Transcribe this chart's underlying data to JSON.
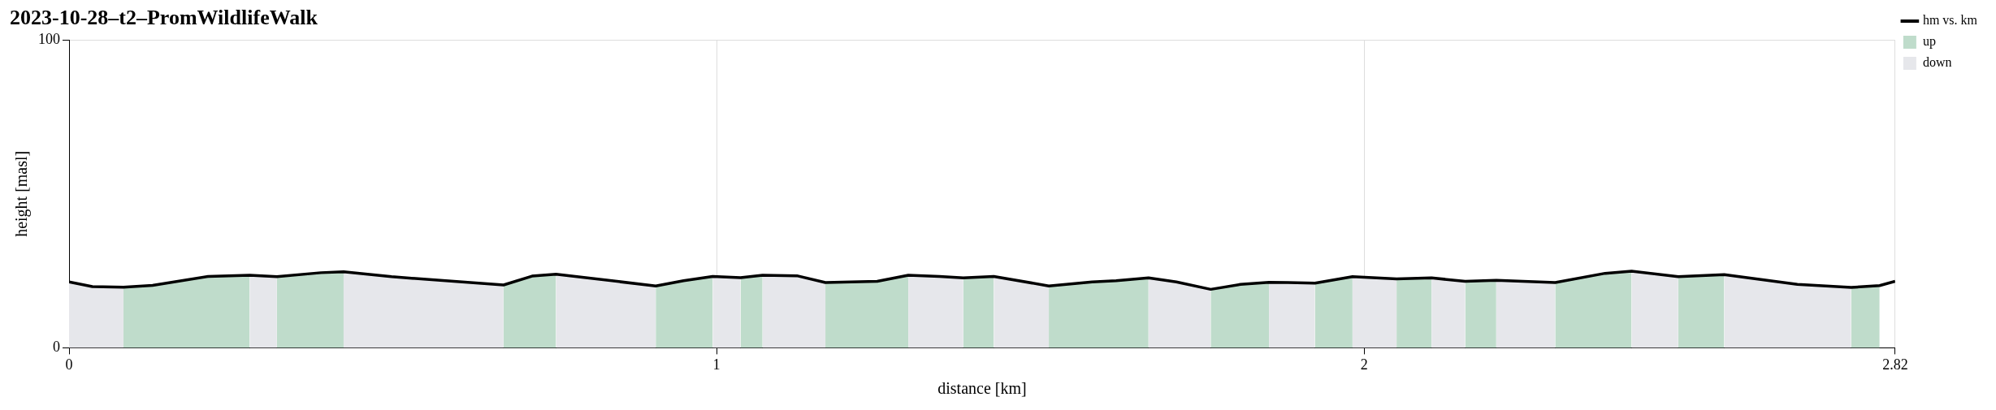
{
  "chart_data": {
    "type": "area",
    "title": "2023-10-28–t2–PromWildlifeWalk",
    "xlabel": "distance [km]",
    "ylabel": "height [masl]",
    "xlim": [
      0,
      2.82
    ],
    "xticks": [
      0,
      1,
      2,
      2.82
    ],
    "ylim": [
      0,
      100
    ],
    "yticks": [
      0,
      100
    ],
    "grid": "x",
    "legend": "top right",
    "series": [
      {
        "name": "hm vs. km",
        "type": "line",
        "color": "#000000",
        "x": [
          0,
          0.036,
          0.084,
          0.129,
          0.215,
          0.279,
          0.321,
          0.389,
          0.424,
          0.498,
          0.671,
          0.715,
          0.752,
          0.906,
          0.949,
          0.994,
          1.037,
          1.071,
          1.124,
          1.168,
          1.248,
          1.296,
          1.344,
          1.381,
          1.428,
          1.513,
          1.58,
          1.617,
          1.667,
          1.71,
          1.763,
          1.809,
          1.853,
          1.882,
          1.924,
          1.982,
          2.05,
          2.104,
          2.156,
          2.204,
          2.295,
          2.372,
          2.413,
          2.485,
          2.556,
          2.669,
          2.752,
          2.796,
          2.82
        ],
        "values": [
          21.4,
          19.9,
          19.7,
          20.3,
          23.2,
          23.6,
          23.1,
          24.4,
          24.7,
          23.1,
          20.4,
          23.3,
          23.9,
          20.1,
          21.8,
          23.2,
          22.8,
          23.6,
          23.4,
          21.2,
          21.6,
          23.6,
          23.2,
          22.7,
          23.2,
          20.1,
          21.4,
          21.8,
          22.7,
          21.4,
          19.0,
          20.6,
          21.3,
          21.2,
          21.0,
          23.1,
          22.4,
          22.7,
          21.6,
          21.9,
          21.2,
          24.2,
          24.9,
          23.1,
          23.8,
          20.6,
          19.6,
          20.2,
          21.6
        ]
      },
      {
        "name": "up",
        "type": "area",
        "color": "#bfdccb",
        "x": [
          0.084,
          0.129,
          0.215,
          0.279,
          0.3,
          0.321,
          0.389,
          0.424,
          0.5,
          0.671,
          0.715,
          0.752,
          0.8,
          0.906,
          0.949,
          0.994,
          1.01,
          1.037,
          1.071,
          1.1,
          1.168,
          1.248,
          1.296,
          1.33,
          1.381,
          1.428,
          1.47,
          1.513,
          1.58,
          1.617,
          1.667,
          1.7,
          1.763,
          1.809,
          1.853,
          1.9,
          1.924,
          1.982,
          2.01,
          2.05,
          2.104,
          2.13,
          2.156,
          2.204,
          2.25,
          2.295,
          2.372,
          2.413,
          2.45,
          2.485,
          2.556,
          2.6,
          2.752,
          2.796
        ],
        "values": [
          19.7,
          20.3,
          23.2,
          23.6,
          null,
          23.1,
          24.4,
          24.7,
          null,
          20.4,
          23.3,
          23.9,
          null,
          20.1,
          21.8,
          23.2,
          null,
          22.8,
          23.6,
          null,
          21.2,
          21.6,
          23.6,
          null,
          22.7,
          23.2,
          null,
          20.1,
          21.4,
          21.8,
          22.7,
          null,
          19.0,
          20.6,
          21.3,
          null,
          21.0,
          23.1,
          null,
          22.4,
          22.7,
          null,
          21.6,
          21.9,
          null,
          21.2,
          24.2,
          24.9,
          null,
          23.1,
          23.8,
          null,
          19.6,
          20.2
        ]
      },
      {
        "name": "down",
        "type": "area",
        "color": "#e6e7eb",
        "x": [
          0,
          0.036,
          0.084,
          0.2,
          0.279,
          0.321,
          0.35,
          0.424,
          0.498,
          0.671,
          0.7,
          0.752,
          0.906,
          0.95,
          0.994,
          1.037,
          1.05,
          1.071,
          1.124,
          1.168,
          1.2,
          1.296,
          1.344,
          1.381,
          1.4,
          1.428,
          1.513,
          1.6,
          1.667,
          1.71,
          1.763,
          1.8,
          1.853,
          1.882,
          1.924,
          1.95,
          1.982,
          2.05,
          2.08,
          2.104,
          2.156,
          2.18,
          2.204,
          2.295,
          2.35,
          2.413,
          2.485,
          2.5,
          2.556,
          2.669,
          2.752
        ],
        "values": [
          21.4,
          19.9,
          19.7,
          null,
          23.6,
          23.1,
          null,
          24.7,
          23.1,
          20.4,
          null,
          23.9,
          20.1,
          null,
          23.2,
          22.8,
          null,
          23.6,
          23.4,
          21.2,
          null,
          23.6,
          23.2,
          22.7,
          null,
          23.2,
          20.1,
          null,
          22.7,
          21.4,
          19.0,
          null,
          21.3,
          21.2,
          21.0,
          null,
          23.1,
          22.4,
          null,
          22.7,
          21.6,
          null,
          21.9,
          21.2,
          null,
          24.9,
          23.1,
          null,
          23.8,
          20.6,
          19.6
        ]
      }
    ]
  }
}
